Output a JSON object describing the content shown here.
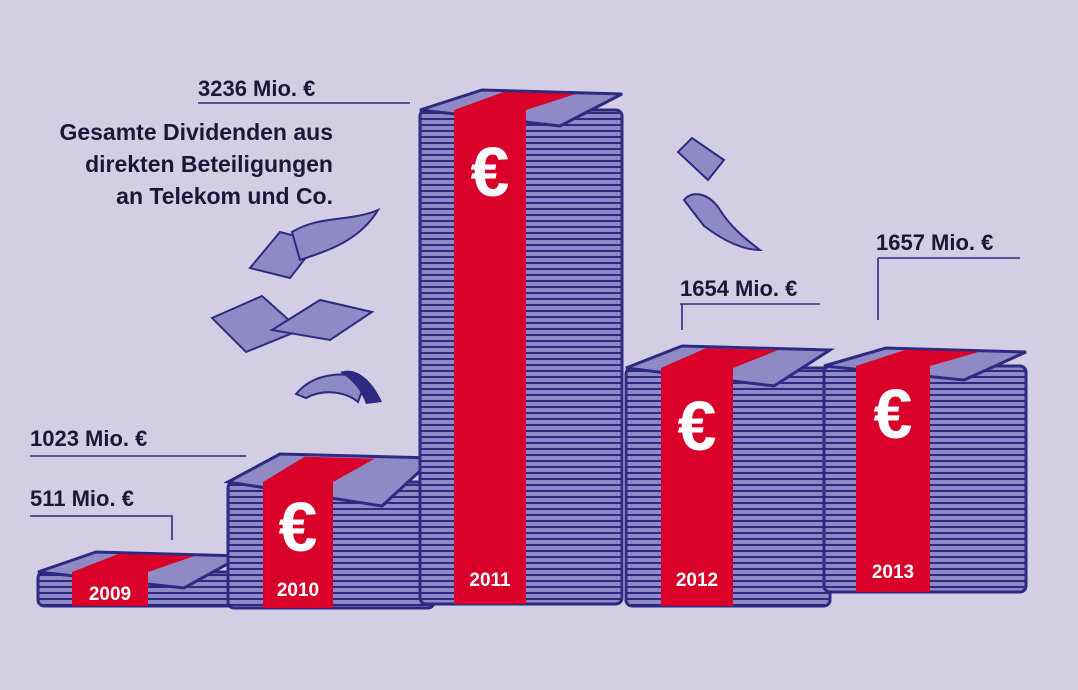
{
  "chart_data": {
    "type": "bar",
    "title": "Gesamte Dividenden aus direkten Beteiligungen an Telekom und Co.",
    "title_lines": [
      "Gesamte Dividenden aus",
      "direkten Beteiligungen",
      "an Telekom und Co."
    ],
    "categories": [
      "2009",
      "2010",
      "2011",
      "2012",
      "2013"
    ],
    "values": [
      511,
      1023,
      3236,
      1654,
      1657
    ],
    "value_labels": [
      "511 Mio. €",
      "1023 Mio. €",
      "3236 Mio. €",
      "1654 Mio. €",
      "1657 Mio. €"
    ],
    "unit": "Mio. €",
    "currency_symbol": "€",
    "ylim": [
      0,
      3236
    ],
    "grid": false,
    "legend": "none",
    "colors": {
      "background": "#d3cee4",
      "stack_fill": "#8f8ac5",
      "stack_lines": "#2e2a82",
      "band": "#d9002a",
      "text": "#1a1838",
      "band_text": "#ffffff"
    }
  }
}
